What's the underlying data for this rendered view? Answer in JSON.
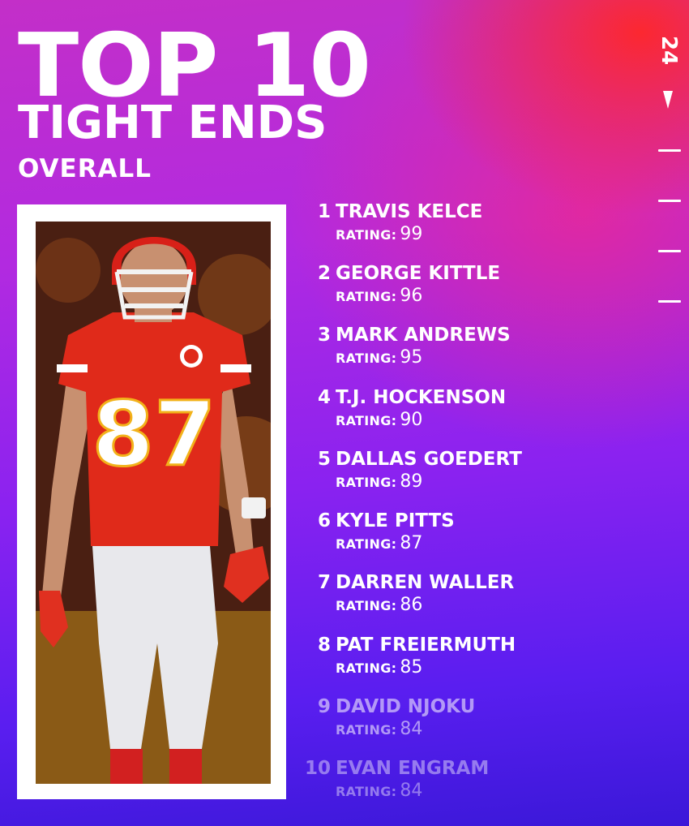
{
  "header": {
    "title_line1": "TOP 10",
    "title_line2": "TIGHT ENDS",
    "subtitle": "OVERALL",
    "year": "24"
  },
  "colors": {
    "accent_red": "#ff2a2a",
    "accent_purple": "#8a22f0",
    "text": "#ffffff"
  },
  "rating_label": "RATING:",
  "players": [
    {
      "rank": "1",
      "name": "TRAVIS KELCE",
      "rating": "99"
    },
    {
      "rank": "2",
      "name": "GEORGE KITTLE",
      "rating": "96"
    },
    {
      "rank": "3",
      "name": "MARK ANDREWS",
      "rating": "95"
    },
    {
      "rank": "4",
      "name": "T.J. HOCKENSON",
      "rating": "90"
    },
    {
      "rank": "5",
      "name": "DALLAS GOEDERT",
      "rating": "89"
    },
    {
      "rank": "6",
      "name": "KYLE PITTS",
      "rating": "87"
    },
    {
      "rank": "7",
      "name": "DARREN WALLER",
      "rating": "86"
    },
    {
      "rank": "8",
      "name": "PAT FREIERMUTH",
      "rating": "85"
    },
    {
      "rank": "9",
      "name": "DAVID NJOKU",
      "rating": "84"
    },
    {
      "rank": "10",
      "name": "EVAN ENGRAM",
      "rating": "84"
    }
  ],
  "photo": {
    "jersey_number": "87",
    "icon": "football-player-photo"
  }
}
